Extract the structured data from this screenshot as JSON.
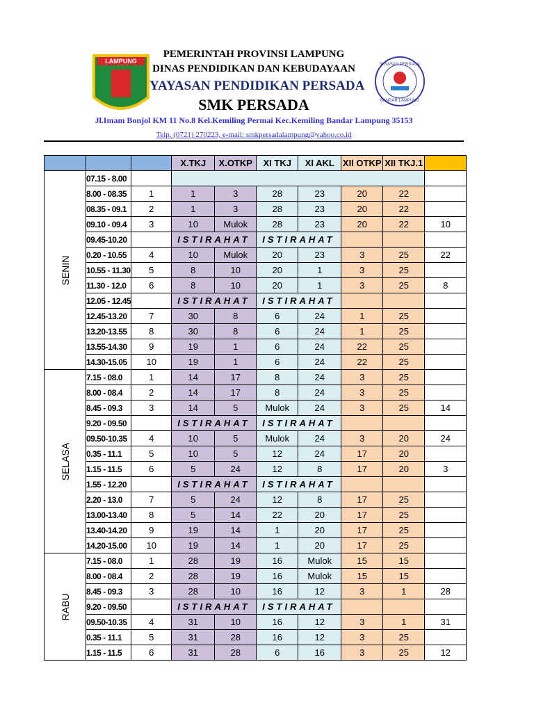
{
  "header": {
    "line1": "PEMERINTAH  PROVINSI  LAMPUNG",
    "line2": "DINAS PENDIDIKAN DAN KEBUDAYAAN",
    "line3": "YAYASAN PENDIDIKAN PERSADA",
    "line4": "SMK PERSADA",
    "address": "Jl.Imam Bonjol KM 11 No.8 Kel.Kemiling Permai Kec.Kemiling Bandar Lampung 35153",
    "contact": "Telp. (0721) 270223, e-mail: smkpersadalampung@yahoo.co.id"
  },
  "logos": {
    "left": "LAMPUNG",
    "right_top": "YAYASAN PERSADA",
    "right_bottom": "BANDAR LAMPUNG"
  },
  "table": {
    "columns": [
      "X.TKJ",
      "X.OTKP",
      "XI TKJ",
      "XI AKL",
      "XII OTKP",
      "XII TKJ.1"
    ],
    "days": [
      {
        "name": "SENIN",
        "rows": [
          {
            "time": "07.15 - 8.00"
          },
          {
            "time": "8.00 - 08.35",
            "jam": 1,
            "cells": [
              1,
              3,
              28,
              23,
              20,
              22
            ]
          },
          {
            "time": "08.35 - 09.1",
            "jam": 2,
            "cells": [
              1,
              3,
              28,
              23,
              20,
              22
            ]
          },
          {
            "time": "09.10 - 09.4",
            "jam": 3,
            "cells": [
              10,
              "Mulok",
              28,
              23,
              20,
              22
            ],
            "extra": 10
          },
          {
            "time": "09.45-10.20",
            "break": [
              "ISTIRAHAT",
              "ISTIRAHAT"
            ]
          },
          {
            "time": "0.20 - 10.55",
            "jam": 4,
            "cells": [
              10,
              "Mulok",
              20,
              23,
              3,
              25
            ],
            "extra": 22
          },
          {
            "time": "10.55 - 11.30",
            "jam": 5,
            "cells": [
              8,
              10,
              20,
              1,
              3,
              25
            ]
          },
          {
            "time": "11.30 - 12.0",
            "jam": 6,
            "cells": [
              8,
              10,
              20,
              1,
              3,
              25
            ],
            "extra": 8
          },
          {
            "time": "12.05 - 12.45",
            "break": [
              "ISTIRAHAT",
              "ISTIRAHAT"
            ]
          },
          {
            "time": "12.45-13.20",
            "jam": 7,
            "cells": [
              30,
              8,
              6,
              24,
              1,
              25
            ]
          },
          {
            "time": "13.20-13.55",
            "jam": 8,
            "cells": [
              30,
              8,
              6,
              24,
              1,
              25
            ]
          },
          {
            "time": "13.55-14.30",
            "jam": 9,
            "cells": [
              19,
              1,
              6,
              24,
              22,
              25
            ]
          },
          {
            "time": "14.30-15.05",
            "jam": 10,
            "cells": [
              19,
              1,
              6,
              24,
              22,
              25
            ]
          }
        ]
      },
      {
        "name": "SELASA",
        "rows": [
          {
            "time": "7.15 - 08.0",
            "jam": 1,
            "cells": [
              14,
              17,
              8,
              24,
              3,
              25
            ]
          },
          {
            "time": "8.00 - 08.4",
            "jam": 2,
            "cells": [
              14,
              17,
              8,
              24,
              3,
              25
            ]
          },
          {
            "time": "8.45 - 09.3",
            "jam": 3,
            "cells": [
              14,
              5,
              "Mulok",
              24,
              3,
              25
            ],
            "extra": 14
          },
          {
            "time": "9.20 - 09.50",
            "break": [
              "ISTIRAHAT",
              "ISTIRAHAT"
            ]
          },
          {
            "time": "09.50-10.35",
            "jam": 4,
            "cells": [
              10,
              5,
              "Mulok",
              24,
              3,
              20
            ],
            "extra": 24
          },
          {
            "time": "0.35 - 11.1",
            "jam": 5,
            "cells": [
              10,
              5,
              12,
              24,
              17,
              20
            ]
          },
          {
            "time": "1.15 - 11.5",
            "jam": 6,
            "cells": [
              5,
              24,
              12,
              8,
              17,
              20
            ],
            "extra": 3
          },
          {
            "time": "1.55 - 12.20",
            "break": [
              "ISTIRAHAT",
              "ISTIRAHAT"
            ]
          },
          {
            "time": "2.20 - 13.0",
            "jam": 7,
            "cells": [
              5,
              24,
              12,
              8,
              17,
              25
            ]
          },
          {
            "time": "13.00-13.40",
            "jam": 8,
            "cells": [
              5,
              14,
              22,
              20,
              17,
              25
            ]
          },
          {
            "time": "13.40-14.20",
            "jam": 9,
            "cells": [
              19,
              14,
              1,
              20,
              17,
              25
            ]
          },
          {
            "time": "14.20-15.00",
            "jam": 10,
            "cells": [
              19,
              14,
              1,
              20,
              17,
              25
            ]
          }
        ]
      },
      {
        "name": "RABU",
        "rows": [
          {
            "time": "7.15 - 08.0",
            "jam": 1,
            "cells": [
              28,
              19,
              16,
              "Mulok",
              15,
              15
            ]
          },
          {
            "time": "8.00 - 08.4",
            "jam": 2,
            "cells": [
              28,
              19,
              16,
              "Mulok",
              15,
              15
            ]
          },
          {
            "time": "8.45 - 09.3",
            "jam": 3,
            "cells": [
              28,
              10,
              16,
              12,
              3,
              1
            ],
            "extra": 28
          },
          {
            "time": "9.20 - 09.50",
            "break": [
              "ISTIRAHAT",
              "ISTIRAHAT"
            ]
          },
          {
            "time": "09.50-10.35",
            "jam": 4,
            "cells": [
              31,
              10,
              16,
              12,
              3,
              1
            ],
            "extra": 31
          },
          {
            "time": "0.35 - 11.1",
            "jam": 5,
            "cells": [
              31,
              28,
              16,
              12,
              3,
              25
            ]
          },
          {
            "time": "1.15 - 11.5",
            "jam": 6,
            "cells": [
              31,
              28,
              6,
              16,
              3,
              25
            ],
            "extra": 12
          }
        ]
      }
    ]
  }
}
